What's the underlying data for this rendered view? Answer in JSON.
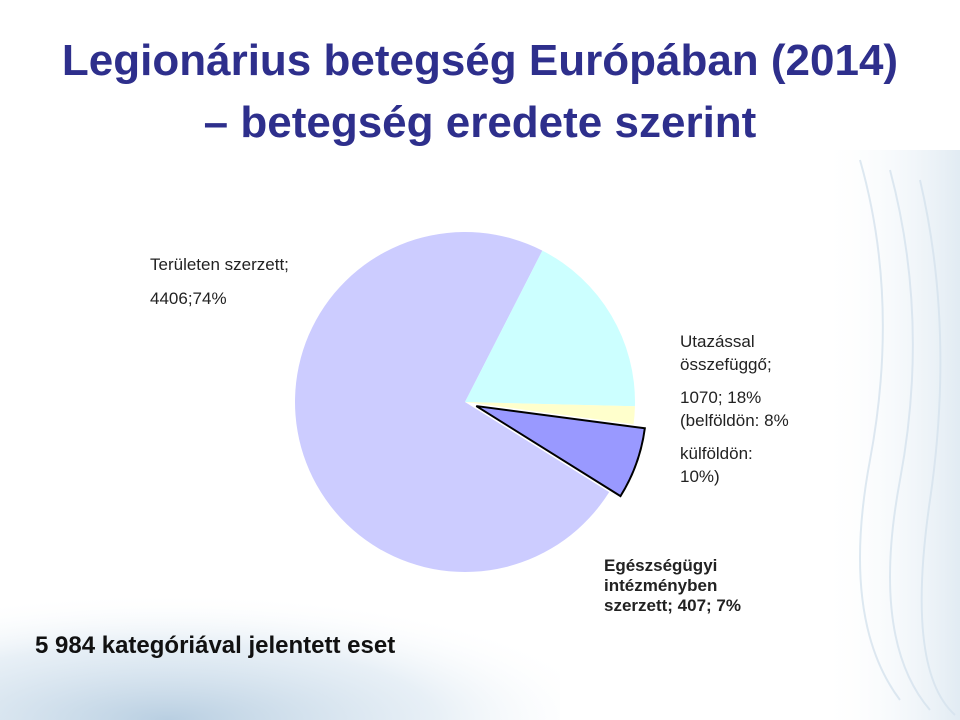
{
  "slide": {
    "title_line1": "Legionárius betegség Európában (2014)",
    "title_line2": "– betegség eredete szerint",
    "footnote": "5 984 kategóriával jelentett eset"
  },
  "labels": {
    "terulet_line1": "Területen szerzett;",
    "terulet_line2": "4406;74%",
    "utazas_line1": "Utazással",
    "utazas_line2": "összefüggő;",
    "utazas_line3": "1070; 18%",
    "utazas_line4": "(belföldön: 8%",
    "utazas_line5": "külföldön:",
    "utazas_line6": "10%)",
    "egeszseg_line1": "Egészségügyi",
    "egeszseg_line2": "intézményben",
    "egeszseg_line3": "szerzett; 407; 7%"
  },
  "chart_data": {
    "type": "pie",
    "title": "Legionárius betegség Európában (2014) – betegség eredete szerint",
    "slices": [
      {
        "label": "Területen szerzett",
        "value": 4406,
        "percent": 74,
        "color": "#ccccff"
      },
      {
        "label": "Utazással összefüggő",
        "value": 1070,
        "percent": 18,
        "color": "#ccffff"
      },
      {
        "label": "",
        "value": 101,
        "percent": 1,
        "color": "#ffffcc"
      },
      {
        "label": "Egészségügyi intézményben szerzett",
        "value": 407,
        "percent": 7,
        "color": "#9999ff",
        "exploded": true
      }
    ],
    "total": 5984,
    "start_angle_deg": 32,
    "direction": "clockwise"
  },
  "colors": {
    "title": "#2e2f8c",
    "outline": "#000000"
  }
}
